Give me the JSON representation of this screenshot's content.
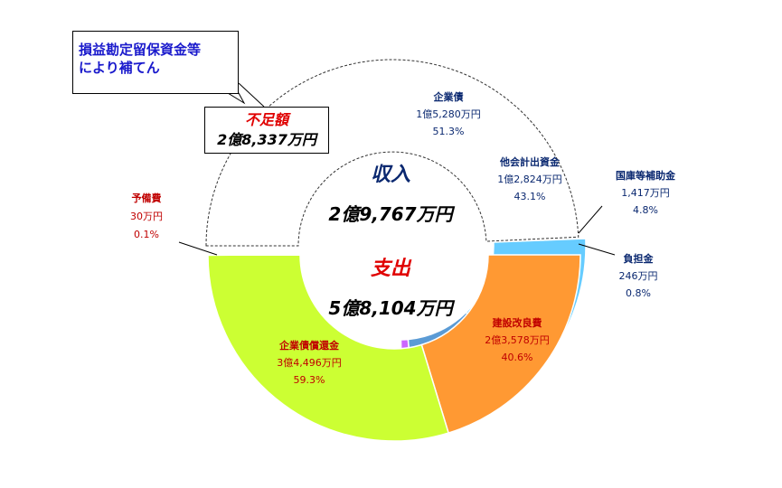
{
  "callout": {
    "line1": "損益勘定留保資金等",
    "line2": "により補てん"
  },
  "shortage": {
    "title": "不足額",
    "value": "2億8,337万円"
  },
  "center": {
    "income_label": "収入",
    "income_value": "2億9,767万円",
    "expense_label": "支出",
    "expense_value": "5億8,104万円"
  },
  "colors": {
    "corporate_bond": "#66ccff",
    "other_account": "#5b9bd5",
    "national_subsidy": "#cc66ff",
    "burden": "#55aa55",
    "construction": "#ff9933",
    "bond_repayment": "#ccff33",
    "reserve": "#ccff33",
    "outline": "#999999",
    "income_label": "#0a2870",
    "expense_label": "#e00000"
  },
  "chart_data": {
    "type": "pie",
    "rings": [
      {
        "name": "収入",
        "slices": [
          {
            "label": "企業債",
            "amount": "1億5,280万円",
            "percent": "51.3%",
            "value": 15280,
            "color": "#66ccff"
          },
          {
            "label": "他会計出資金",
            "amount": "1億2,824万円",
            "percent": "43.1%",
            "value": 12824,
            "color": "#5b9bd5"
          },
          {
            "label": "国庫等補助金",
            "amount": "1,417万円",
            "percent": "4.8%",
            "value": 1417,
            "color": "#cc66ff"
          },
          {
            "label": "負担金",
            "amount": "246万円",
            "percent": "0.8%",
            "value": 246,
            "color": "#55aa55"
          }
        ],
        "shortage": {
          "label": "不足額",
          "value": 28337
        }
      },
      {
        "name": "支出",
        "slices": [
          {
            "label": "建設改良費",
            "amount": "2億3,578万円",
            "percent": "40.6%",
            "value": 23578,
            "color": "#ff9933"
          },
          {
            "label": "企業債償還金",
            "amount": "3億4,496万円",
            "percent": "59.3%",
            "value": 34496,
            "color": "#ccff33"
          },
          {
            "label": "予備費",
            "amount": "30万円",
            "percent": "0.1%",
            "value": 30,
            "color": "#ccff33"
          }
        ]
      }
    ]
  }
}
